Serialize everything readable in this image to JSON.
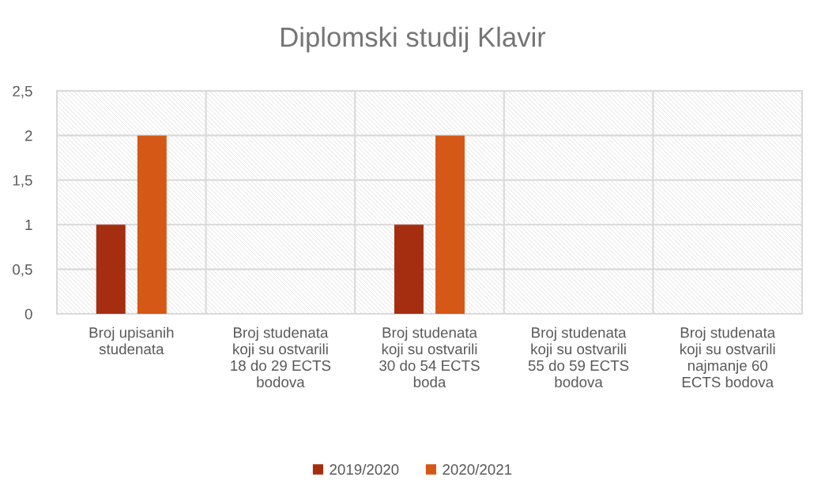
{
  "chart_data": {
    "type": "bar",
    "title": "Diplomski studij Klavir",
    "categories": [
      "Broj upisanih\nstudenata",
      "Broj studenata\nkoji su ostvarili\n18 do 29 ECTS\nbodova",
      "Broj studenata\nkoji su ostvarili\n30 do 54 ECTS\nboda",
      "Broj studenata\nkoji su ostvarili\n55 do 59 ECTS\nbodova",
      "Broj studenata\nkoji su ostvarili\nnajmanje 60\nECTS bodova"
    ],
    "series": [
      {
        "name": "2019/2020",
        "color": "#a52e10",
        "values": [
          1,
          0,
          1,
          0,
          0
        ]
      },
      {
        "name": "2020/2021",
        "color": "#d55816",
        "values": [
          2,
          0,
          2,
          0,
          0
        ]
      }
    ],
    "ylim": [
      0,
      2.5
    ],
    "yticks": [
      0,
      {
        "value": 0.5,
        "label": "0,5"
      },
      1,
      {
        "value": 1.5,
        "label": "1,5"
      },
      2,
      {
        "value": 2.5,
        "label": "2,5"
      }
    ],
    "grid": true,
    "legend": "bottom"
  }
}
